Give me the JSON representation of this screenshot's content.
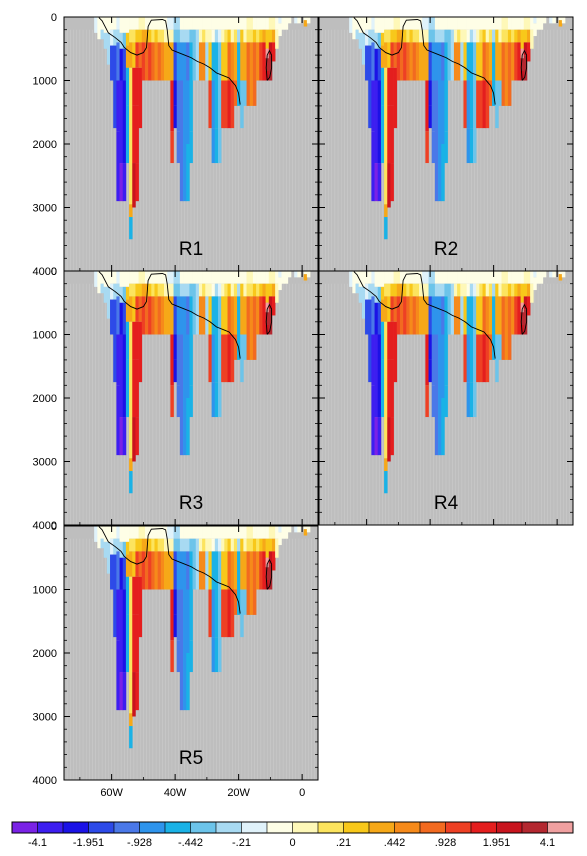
{
  "chart_data": {
    "type": "heatmap",
    "title": "",
    "panel_labels": [
      "R1",
      "R2",
      "R3",
      "R4",
      "R5"
    ],
    "y_axis": {
      "range": [
        0,
        4000
      ],
      "inverted": true,
      "ticks": [
        0,
        1000,
        2000,
        3000,
        4000
      ],
      "tick_labels": [
        "0",
        "1000",
        "2000",
        "3000",
        "4000"
      ]
    },
    "x_axis": {
      "range": [
        -75,
        5
      ],
      "ticks": [
        -60,
        -40,
        -20,
        0
      ],
      "tick_labels": [
        "60W",
        "40W",
        "20W",
        "0"
      ]
    },
    "colorbar": {
      "tick_labels": [
        "-4.1",
        "-1.951",
        "-.928",
        "-.442",
        "-.21",
        "0",
        ".21",
        ".442",
        ".928",
        "1.951",
        "4.1"
      ],
      "colors": [
        "#7a22e6",
        "#3d1ef0",
        "#1b12e6",
        "#2d4ae8",
        "#4a78e8",
        "#2e94ec",
        "#1ab2e6",
        "#6cc4ea",
        "#a8daf2",
        "#e0f2fa",
        "#fefee6",
        "#fef8b8",
        "#fce45e",
        "#f8c81a",
        "#f6a818",
        "#f68a1a",
        "#f26a20",
        "#ee4024",
        "#e41e1e",
        "#c8141e",
        "#b42830",
        "#f0a0a0"
      ]
    },
    "land_color": "#bebebe",
    "grid": true
  }
}
